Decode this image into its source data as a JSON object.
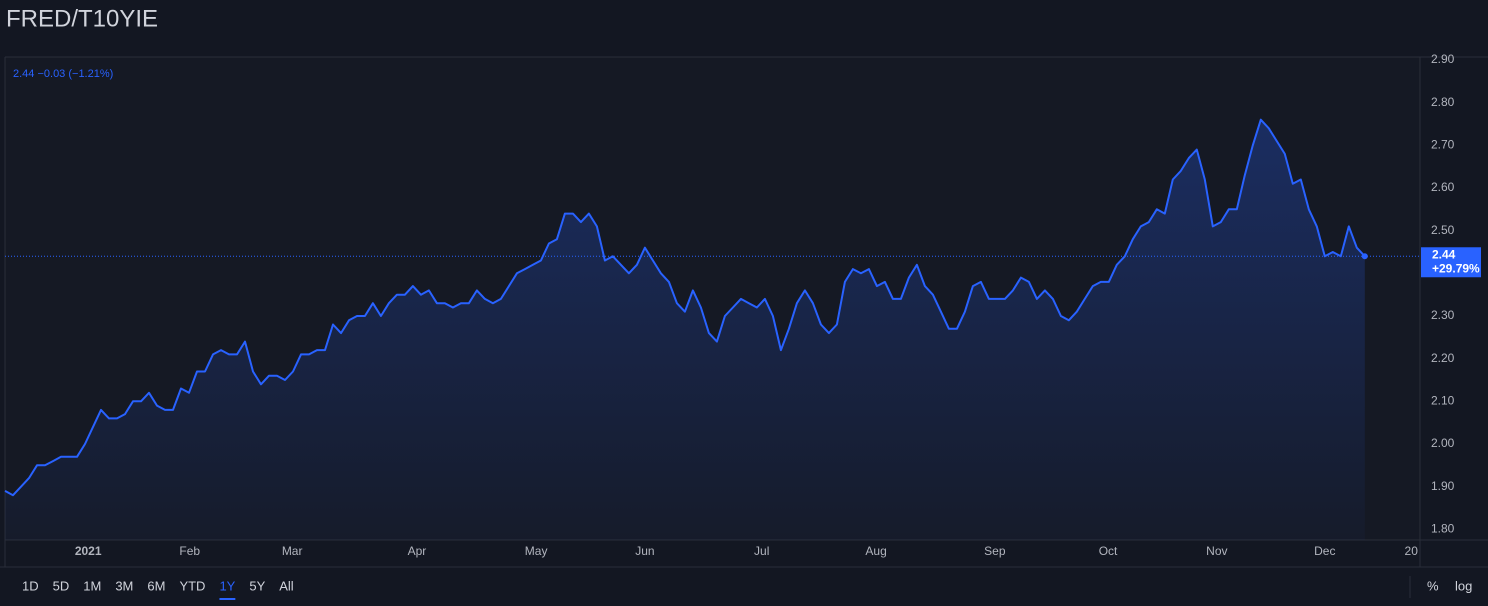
{
  "chart_data": {
    "type": "line",
    "title": "FRED/T10YIE",
    "legend_text": "2.44 −0.03 (−1.21%)",
    "change_label": "+29.79%",
    "color": "#2962ff",
    "grid": false,
    "values": [
      1.89,
      1.88,
      1.9,
      1.92,
      1.95,
      1.95,
      1.96,
      1.97,
      1.97,
      1.97,
      2.0,
      2.04,
      2.08,
      2.06,
      2.06,
      2.07,
      2.1,
      2.1,
      2.12,
      2.09,
      2.08,
      2.08,
      2.13,
      2.12,
      2.17,
      2.17,
      2.21,
      2.22,
      2.21,
      2.21,
      2.24,
      2.17,
      2.14,
      2.16,
      2.16,
      2.15,
      2.17,
      2.21,
      2.21,
      2.22,
      2.22,
      2.28,
      2.26,
      2.29,
      2.3,
      2.3,
      2.33,
      2.3,
      2.33,
      2.35,
      2.35,
      2.37,
      2.35,
      2.36,
      2.33,
      2.33,
      2.32,
      2.33,
      2.33,
      2.36,
      2.34,
      2.33,
      2.34,
      2.37,
      2.4,
      2.41,
      2.42,
      2.43,
      2.47,
      2.48,
      2.54,
      2.54,
      2.52,
      2.54,
      2.51,
      2.43,
      2.44,
      2.42,
      2.4,
      2.42,
      2.46,
      2.43,
      2.4,
      2.38,
      2.33,
      2.31,
      2.36,
      2.32,
      2.26,
      2.24,
      2.3,
      2.32,
      2.34,
      2.33,
      2.32,
      2.34,
      2.3,
      2.22,
      2.27,
      2.33,
      2.36,
      2.33,
      2.28,
      2.26,
      2.28,
      2.38,
      2.41,
      2.4,
      2.41,
      2.37,
      2.38,
      2.34,
      2.34,
      2.39,
      2.42,
      2.37,
      2.35,
      2.31,
      2.27,
      2.27,
      2.31,
      2.37,
      2.38,
      2.34,
      2.34,
      2.34,
      2.36,
      2.39,
      2.38,
      2.34,
      2.36,
      2.34,
      2.3,
      2.29,
      2.31,
      2.34,
      2.37,
      2.38,
      2.38,
      2.42,
      2.44,
      2.48,
      2.51,
      2.52,
      2.55,
      2.54,
      2.62,
      2.64,
      2.67,
      2.69,
      2.62,
      2.51,
      2.52,
      2.55,
      2.55,
      2.63,
      2.7,
      2.76,
      2.74,
      2.71,
      2.68,
      2.61,
      2.62,
      2.55,
      2.51,
      2.44,
      2.45,
      2.44,
      2.51,
      2.46,
      2.44
    ],
    "xlim": [
      0,
      176.9
    ],
    "xticks": [
      {
        "value": 10.4,
        "label": "2021"
      },
      {
        "value": 23.1,
        "label": "Feb"
      },
      {
        "value": 35.9,
        "label": "Mar"
      },
      {
        "value": 51.5,
        "label": "Apr"
      },
      {
        "value": 66.4,
        "label": "May"
      },
      {
        "value": 80,
        "label": "Jun"
      },
      {
        "value": 94.6,
        "label": "Jul"
      },
      {
        "value": 108.9,
        "label": "Aug"
      },
      {
        "value": 123.75,
        "label": "Sep"
      },
      {
        "value": 137.9,
        "label": "Oct"
      },
      {
        "value": 151.5,
        "label": "Nov"
      },
      {
        "value": 165,
        "label": "Dec"
      },
      {
        "value": 175.8,
        "label": "20"
      }
    ],
    "ylim": [
      1.775,
      2.907
    ],
    "yticks": [
      {
        "value": 1.8,
        "label": "1.80"
      },
      {
        "value": 1.9,
        "label": "1.90"
      },
      {
        "value": 2.0,
        "label": "2.00"
      },
      {
        "value": 2.1,
        "label": "2.10"
      },
      {
        "value": 2.2,
        "label": "2.20"
      },
      {
        "value": 2.3,
        "label": "2.30"
      },
      {
        "value": 2.4,
        "label": "2.40"
      },
      {
        "value": 2.5,
        "label": "2.50"
      },
      {
        "value": 2.6,
        "label": "2.60"
      },
      {
        "value": 2.7,
        "label": "2.70"
      },
      {
        "value": 2.8,
        "label": "2.80"
      },
      {
        "value": 2.9,
        "label": "2.90"
      }
    ],
    "range_buttons": [
      "1D",
      "5D",
      "1M",
      "3M",
      "6M",
      "YTD",
      "1Y",
      "5Y",
      "All"
    ],
    "active_range": 6,
    "scale_buttons": [
      "%",
      "log"
    ]
  }
}
